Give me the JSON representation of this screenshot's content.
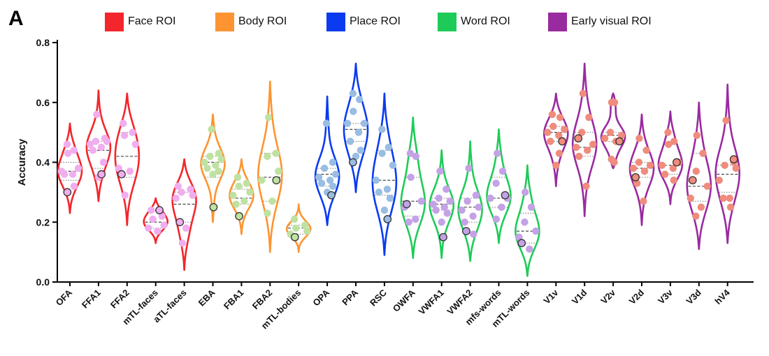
{
  "panel_letter": "A",
  "legend": [
    {
      "label": "Face ROI",
      "color": "#f3262b"
    },
    {
      "label": "Body ROI",
      "color": "#fd9431"
    },
    {
      "label": "Place ROI",
      "color": "#0a3bf0"
    },
    {
      "label": "Word ROI",
      "color": "#1fcb58"
    },
    {
      "label": "Early visual ROI",
      "color": "#9a2aa0"
    }
  ],
  "chart_data": {
    "type": "violin",
    "ylabel": "Accuracy",
    "xlabel": "",
    "ylim": [
      0,
      0.8
    ],
    "yticks": [
      0.0,
      0.2,
      0.4,
      0.6,
      0.8
    ],
    "ytick_labels": [
      "0.0",
      "0.2",
      "0.4",
      "0.6",
      "0.8"
    ],
    "categories": [
      {
        "name": "OFA",
        "group": "face",
        "color": "#f3262b",
        "point_color": "#f0aeee",
        "ymin": 0.23,
        "ymax": 0.53,
        "median": 0.37,
        "q1": 0.34,
        "q3": 0.4,
        "points": [
          0.46,
          0.44,
          0.43,
          0.38,
          0.37,
          0.36,
          0.36,
          0.32
        ],
        "highlight": 0.3
      },
      {
        "name": "FFA1",
        "group": "face",
        "color": "#f3262b",
        "point_color": "#f0aeee",
        "ymin": 0.27,
        "ymax": 0.64,
        "median": 0.44,
        "q1": 0.38,
        "q3": 0.47,
        "points": [
          0.56,
          0.48,
          0.47,
          0.47,
          0.46,
          0.45,
          0.44,
          0.4,
          0.35
        ],
        "highlight": 0.36
      },
      {
        "name": "FFA2",
        "group": "face",
        "color": "#f3262b",
        "point_color": "#f0aeee",
        "ymin": 0.19,
        "ymax": 0.63,
        "median": 0.42,
        "q1": 0.35,
        "q3": 0.5,
        "points": [
          0.53,
          0.5,
          0.49,
          0.46,
          0.38,
          0.37,
          0.29
        ],
        "highlight": 0.36
      },
      {
        "name": "mTL-faces",
        "group": "face",
        "color": "#f3262b",
        "point_color": "#f0aeee",
        "ymin": 0.13,
        "ymax": 0.28,
        "median": 0.2,
        "q1": 0.18,
        "q3": 0.24,
        "points": [
          0.24,
          0.22,
          0.21,
          0.19,
          0.18,
          0.17
        ],
        "highlight": 0.24
      },
      {
        "name": "aTL-faces",
        "group": "face",
        "color": "#f3262b",
        "point_color": "#f0aeee",
        "ymin": 0.04,
        "ymax": 0.41,
        "median": 0.26,
        "q1": 0.2,
        "q3": 0.3,
        "points": [
          0.32,
          0.31,
          0.3,
          0.29,
          0.28,
          0.18,
          0.13
        ],
        "highlight": 0.2
      },
      {
        "name": "EBA",
        "group": "body",
        "color": "#fd9431",
        "point_color": "#bfe2a2",
        "ymin": 0.2,
        "ymax": 0.56,
        "median": 0.4,
        "q1": 0.35,
        "q3": 0.42,
        "points": [
          0.51,
          0.43,
          0.42,
          0.41,
          0.4,
          0.39,
          0.38,
          0.37,
          0.36
        ],
        "highlight": 0.25
      },
      {
        "name": "FBA1",
        "group": "body",
        "color": "#fd9431",
        "point_color": "#bfe2a2",
        "ymin": 0.16,
        "ymax": 0.41,
        "median": 0.28,
        "q1": 0.26,
        "q3": 0.31,
        "points": [
          0.35,
          0.33,
          0.32,
          0.3,
          0.29,
          0.27,
          0.26
        ],
        "highlight": 0.22
      },
      {
        "name": "FBA2",
        "group": "body",
        "color": "#fd9431",
        "point_color": "#bfe2a2",
        "ymin": 0.1,
        "ymax": 0.67,
        "median": 0.35,
        "q1": 0.27,
        "q3": 0.43,
        "points": [
          0.55,
          0.43,
          0.42,
          0.37,
          0.34,
          0.27,
          0.23
        ],
        "highlight": 0.34
      },
      {
        "name": "mTL-bodies",
        "group": "body",
        "color": "#fd9431",
        "point_color": "#bfe2a2",
        "ymin": 0.1,
        "ymax": 0.26,
        "median": 0.18,
        "q1": 0.16,
        "q3": 0.19,
        "points": [
          0.21,
          0.19,
          0.18,
          0.17,
          0.16
        ],
        "highlight": 0.15
      },
      {
        "name": "OPA",
        "group": "place",
        "color": "#0a3bf0",
        "point_color": "#99bde3",
        "ymin": 0.19,
        "ymax": 0.62,
        "median": 0.36,
        "q1": 0.32,
        "q3": 0.38,
        "points": [
          0.53,
          0.4,
          0.38,
          0.36,
          0.35,
          0.34,
          0.33,
          0.32,
          0.3
        ],
        "highlight": 0.29
      },
      {
        "name": "PPA",
        "group": "place",
        "color": "#0a3bf0",
        "point_color": "#99bde3",
        "ymin": 0.3,
        "ymax": 0.73,
        "median": 0.51,
        "q1": 0.47,
        "q3": 0.53,
        "points": [
          0.63,
          0.61,
          0.57,
          0.53,
          0.53,
          0.5,
          0.47,
          0.44,
          0.42
        ],
        "highlight": 0.4
      },
      {
        "name": "RSC",
        "group": "place",
        "color": "#0a3bf0",
        "point_color": "#99bde3",
        "ymin": 0.09,
        "ymax": 0.63,
        "median": 0.34,
        "q1": 0.29,
        "q3": 0.44,
        "points": [
          0.51,
          0.45,
          0.43,
          0.39,
          0.34,
          0.31,
          0.3,
          0.28,
          0.24
        ],
        "highlight": 0.21
      },
      {
        "name": "OWFA",
        "group": "word",
        "color": "#1fcb58",
        "point_color": "#c4a2e6",
        "ymin": 0.08,
        "ymax": 0.55,
        "median": 0.27,
        "q1": 0.22,
        "q3": 0.35,
        "points": [
          0.43,
          0.42,
          0.35,
          0.27,
          0.25,
          0.21,
          0.2
        ],
        "highlight": 0.26
      },
      {
        "name": "VWFA1",
        "group": "word",
        "color": "#1fcb58",
        "point_color": "#c4a2e6",
        "ymin": 0.08,
        "ymax": 0.44,
        "median": 0.26,
        "q1": 0.24,
        "q3": 0.28,
        "points": [
          0.37,
          0.31,
          0.28,
          0.27,
          0.26,
          0.25,
          0.24,
          0.23,
          0.2
        ],
        "highlight": 0.15
      },
      {
        "name": "VWFA2",
        "group": "word",
        "color": "#1fcb58",
        "point_color": "#c4a2e6",
        "ymin": 0.07,
        "ymax": 0.47,
        "median": 0.25,
        "q1": 0.2,
        "q3": 0.28,
        "points": [
          0.38,
          0.29,
          0.27,
          0.25,
          0.24,
          0.22,
          0.2,
          0.16
        ],
        "highlight": 0.17
      },
      {
        "name": "mfs-words",
        "group": "word",
        "color": "#1fcb58",
        "point_color": "#c4a2e6",
        "ymin": 0.13,
        "ymax": 0.51,
        "median": 0.28,
        "q1": 0.25,
        "q3": 0.35,
        "points": [
          0.43,
          0.37,
          0.33,
          0.28,
          0.28,
          0.25,
          0.21
        ],
        "highlight": 0.29
      },
      {
        "name": "mTL-words",
        "group": "word",
        "color": "#1fcb58",
        "point_color": "#c4a2e6",
        "ymin": 0.02,
        "ymax": 0.39,
        "median": 0.17,
        "q1": 0.13,
        "q3": 0.23,
        "points": [
          0.3,
          0.25,
          0.2,
          0.17,
          0.15,
          0.11
        ],
        "highlight": 0.13
      },
      {
        "name": "V1v",
        "group": "early",
        "color": "#9a2aa0",
        "point_color": "#ef8c7e",
        "ymin": 0.32,
        "ymax": 0.63,
        "median": 0.5,
        "q1": 0.47,
        "q3": 0.52,
        "points": [
          0.56,
          0.55,
          0.52,
          0.51,
          0.5,
          0.49,
          0.47,
          0.43,
          0.39
        ],
        "highlight": 0.47
      },
      {
        "name": "V1d",
        "group": "early",
        "color": "#9a2aa0",
        "point_color": "#ef8c7e",
        "ymin": 0.22,
        "ymax": 0.73,
        "median": 0.45,
        "q1": 0.42,
        "q3": 0.5,
        "points": [
          0.63,
          0.55,
          0.5,
          0.46,
          0.45,
          0.44,
          0.42,
          0.32
        ],
        "highlight": 0.48
      },
      {
        "name": "V2v",
        "group": "early",
        "color": "#9a2aa0",
        "point_color": "#ef8c7e",
        "ymin": 0.38,
        "ymax": 0.63,
        "median": 0.49,
        "q1": 0.47,
        "q3": 0.5,
        "points": [
          0.6,
          0.6,
          0.5,
          0.49,
          0.48,
          0.47,
          0.41,
          0.4
        ],
        "highlight": 0.47
      },
      {
        "name": "V2d",
        "group": "early",
        "color": "#9a2aa0",
        "point_color": "#ef8c7e",
        "ymin": 0.19,
        "ymax": 0.56,
        "median": 0.38,
        "q1": 0.35,
        "q3": 0.4,
        "points": [
          0.48,
          0.44,
          0.4,
          0.39,
          0.38,
          0.37,
          0.33,
          0.27
        ],
        "highlight": 0.35
      },
      {
        "name": "V3v",
        "group": "early",
        "color": "#9a2aa0",
        "point_color": "#ef8c7e",
        "ymin": 0.26,
        "ymax": 0.57,
        "median": 0.39,
        "q1": 0.36,
        "q3": 0.46,
        "points": [
          0.5,
          0.47,
          0.46,
          0.4,
          0.39,
          0.38,
          0.36,
          0.34
        ],
        "highlight": 0.4
      },
      {
        "name": "V3d",
        "group": "early",
        "color": "#9a2aa0",
        "point_color": "#ef8c7e",
        "ymin": 0.11,
        "ymax": 0.6,
        "median": 0.32,
        "q1": 0.27,
        "q3": 0.43,
        "points": [
          0.49,
          0.43,
          0.37,
          0.32,
          0.28,
          0.25,
          0.22
        ],
        "highlight": 0.34
      },
      {
        "name": "hV4",
        "group": "early",
        "color": "#9a2aa0",
        "point_color": "#ef8c7e",
        "ymin": 0.13,
        "ymax": 0.66,
        "median": 0.36,
        "q1": 0.3,
        "q3": 0.39,
        "points": [
          0.54,
          0.4,
          0.39,
          0.38,
          0.34,
          0.28,
          0.28,
          0.25
        ],
        "highlight": 0.41
      }
    ]
  }
}
